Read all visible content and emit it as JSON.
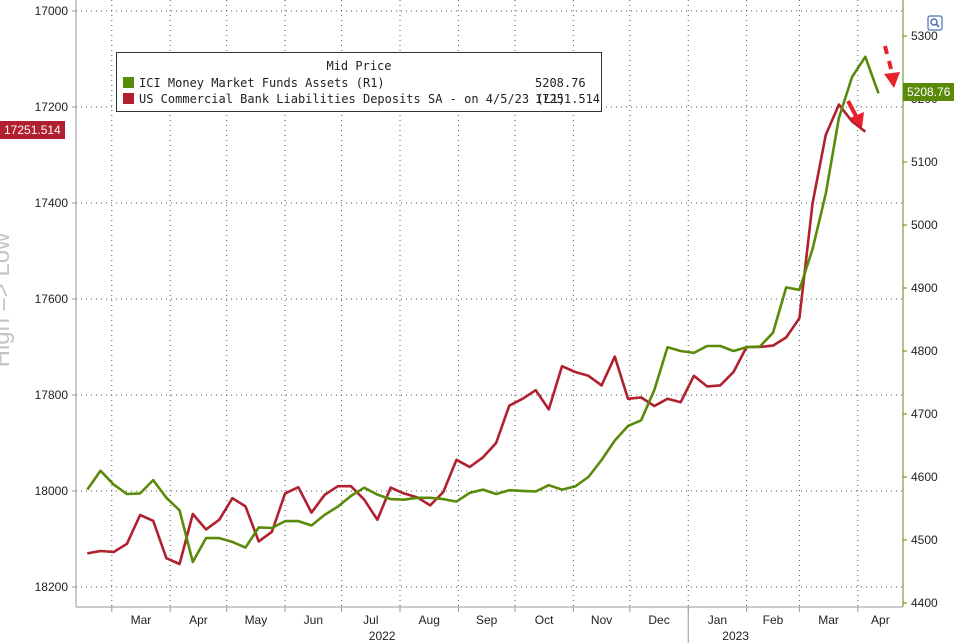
{
  "chart_data": {
    "type": "line",
    "title": "",
    "side_label": "High => Low",
    "legend": {
      "title": "Mid Price",
      "entries": [
        {
          "label": "ICI Money Market Funds Assets  (R1)",
          "value": "5208.76",
          "color": "#5a8a0a"
        },
        {
          "label": "US Commercial Bank Liabilities Deposits SA -  on 4/5/23  (L1)",
          "value": "17251.514",
          "color": "#b0202e"
        }
      ]
    },
    "left_axis": {
      "ylim": [
        17000,
        18250
      ],
      "inverted": true,
      "ticks": [
        "17000",
        "17200",
        "17400",
        "17600",
        "17800",
        "18000",
        "18200"
      ]
    },
    "right_axis": {
      "ylim": [
        4390,
        5340
      ],
      "ticks": [
        "5300",
        "5200",
        "5100",
        "5000",
        "4900",
        "4800",
        "4700",
        "4600",
        "4500",
        "4400"
      ]
    },
    "x_axis": {
      "months": [
        "Mar",
        "Apr",
        "May",
        "Jun",
        "Jul",
        "Aug",
        "Sep",
        "Oct",
        "Nov",
        "Dec",
        "Jan",
        "Feb",
        "Mar",
        "Apr"
      ],
      "years": [
        "2022",
        "2023"
      ]
    },
    "flags": {
      "left": "17251.514",
      "right": "5208.76"
    },
    "series": [
      {
        "name": "US Commercial Bank Liabilities Deposits SA -  on 4/5/23  (L1)",
        "axis": "left",
        "color": "#b0202e",
        "x": [
          "2022-02-16",
          "2022-02-23",
          "2022-03-02",
          "2022-03-09",
          "2022-03-16",
          "2022-03-23",
          "2022-03-30",
          "2022-04-06",
          "2022-04-13",
          "2022-04-20",
          "2022-04-27",
          "2022-05-04",
          "2022-05-11",
          "2022-05-18",
          "2022-05-25",
          "2022-06-01",
          "2022-06-08",
          "2022-06-15",
          "2022-06-22",
          "2022-06-29",
          "2022-07-06",
          "2022-07-13",
          "2022-07-20",
          "2022-07-27",
          "2022-08-03",
          "2022-08-10",
          "2022-08-17",
          "2022-08-24",
          "2022-08-31",
          "2022-09-07",
          "2022-09-14",
          "2022-09-21",
          "2022-09-28",
          "2022-10-05",
          "2022-10-12",
          "2022-10-19",
          "2022-10-26",
          "2022-11-02",
          "2022-11-09",
          "2022-11-16",
          "2022-11-23",
          "2022-11-30",
          "2022-12-07",
          "2022-12-14",
          "2022-12-21",
          "2022-12-28",
          "2023-01-04",
          "2023-01-11",
          "2023-01-18",
          "2023-01-25",
          "2023-02-01",
          "2023-02-08",
          "2023-02-15",
          "2023-02-22",
          "2023-03-01",
          "2023-03-08",
          "2023-03-15",
          "2023-03-22",
          "2023-03-29",
          "2023-04-05"
        ],
        "values": [
          18130,
          18125,
          18127,
          18110,
          18050,
          18062,
          18140,
          18152,
          18048,
          18080,
          18060,
          18015,
          18032,
          18105,
          18085,
          18005,
          17992,
          18045,
          18008,
          17990,
          17990,
          18018,
          18060,
          17993,
          18005,
          18013,
          18030,
          18002,
          17935,
          17950,
          17930,
          17900,
          17822,
          17808,
          17790,
          17830,
          17740,
          17752,
          17760,
          17780,
          17720,
          17808,
          17805,
          17823,
          17808,
          17815,
          17760,
          17782,
          17780,
          17752,
          17700,
          17700,
          17697,
          17680,
          17640,
          17400,
          17258,
          17195,
          17230,
          17251.514
        ]
      },
      {
        "name": "ICI Money Market Funds Assets  (R1)",
        "axis": "right",
        "color": "#5a8a0a",
        "x": [
          "2022-02-16",
          "2022-02-23",
          "2022-03-02",
          "2022-03-09",
          "2022-03-16",
          "2022-03-23",
          "2022-03-30",
          "2022-04-06",
          "2022-04-13",
          "2022-04-20",
          "2022-04-27",
          "2022-05-04",
          "2022-05-11",
          "2022-05-18",
          "2022-05-25",
          "2022-06-01",
          "2022-06-08",
          "2022-06-15",
          "2022-06-22",
          "2022-06-29",
          "2022-07-06",
          "2022-07-13",
          "2022-07-20",
          "2022-07-27",
          "2022-08-03",
          "2022-08-10",
          "2022-08-17",
          "2022-08-24",
          "2022-08-31",
          "2022-09-07",
          "2022-09-14",
          "2022-09-21",
          "2022-09-28",
          "2022-10-05",
          "2022-10-12",
          "2022-10-19",
          "2022-10-26",
          "2022-11-02",
          "2022-11-09",
          "2022-11-16",
          "2022-11-23",
          "2022-11-30",
          "2022-12-07",
          "2022-12-14",
          "2022-12-21",
          "2022-12-28",
          "2023-01-04",
          "2023-01-11",
          "2023-01-18",
          "2023-01-25",
          "2023-02-01",
          "2023-02-08",
          "2023-02-15",
          "2023-02-22",
          "2023-03-01",
          "2023-03-08",
          "2023-03-15",
          "2023-03-22",
          "2023-03-29",
          "2023-04-05",
          "2023-04-12"
        ],
        "values": [
          4580,
          4610,
          4588,
          4573,
          4574,
          4595,
          4567,
          4547,
          4465,
          4503,
          4503,
          4497,
          4488,
          4520,
          4519,
          4530,
          4530,
          4523,
          4540,
          4553,
          4570,
          4583,
          4572,
          4565,
          4564,
          4567,
          4567,
          4565,
          4561,
          4575,
          4580,
          4573,
          4579,
          4578,
          4577,
          4587,
          4580,
          4585,
          4600,
          4627,
          4658,
          4681,
          4690,
          4738,
          4806,
          4800,
          4797,
          4808,
          4808,
          4800,
          4806,
          4807,
          4829,
          4901,
          4897,
          4962,
          5050,
          5170,
          5235,
          5267,
          5209
        ]
      }
    ]
  }
}
